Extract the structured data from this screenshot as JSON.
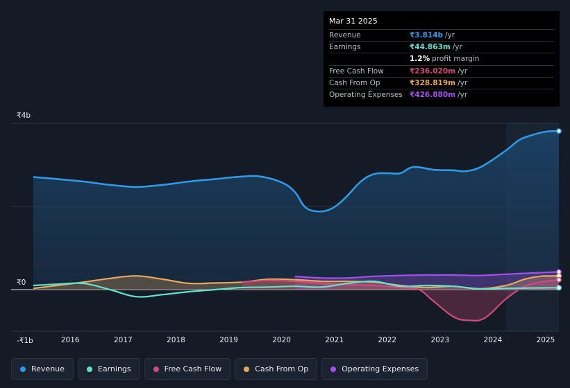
{
  "tooltip": {
    "date": "Mar 31 2025",
    "rows": [
      {
        "label": "Revenue",
        "value": "₹3.814b",
        "unit": "/yr",
        "color": "#2e9ae6"
      },
      {
        "label": "Earnings",
        "value": "₹44.863m",
        "unit": "/yr",
        "color": "#5fe3cf"
      },
      {
        "label": "",
        "value": "1.2%",
        "unit": "profit margin",
        "color": "#ffffff"
      },
      {
        "label": "Free Cash Flow",
        "value": "₹236.020m",
        "unit": "/yr",
        "color": "#d04a7e"
      },
      {
        "label": "Cash From Op",
        "value": "₹328.819m",
        "unit": "/yr",
        "color": "#e8a85a"
      },
      {
        "label": "Operating Expenses",
        "value": "₹426.880m",
        "unit": "/yr",
        "color": "#a64ff0"
      }
    ]
  },
  "legend": [
    {
      "label": "Revenue",
      "color": "#2e9ae6"
    },
    {
      "label": "Earnings",
      "color": "#5fe3cf"
    },
    {
      "label": "Free Cash Flow",
      "color": "#d04a7e"
    },
    {
      "label": "Cash From Op",
      "color": "#e8a85a"
    },
    {
      "label": "Operating Expenses",
      "color": "#a64ff0"
    }
  ],
  "chart_data": {
    "type": "area",
    "title": "",
    "xlabel": "",
    "ylabel": "",
    "unit": "INR (billions)",
    "y_ticks": [
      {
        "value": 4,
        "label": "₹4b"
      },
      {
        "value": 0,
        "label": "₹0"
      },
      {
        "value": -1,
        "label": "-₹1b"
      }
    ],
    "ylim": [
      -1,
      4
    ],
    "xlim": [
      2015.3,
      2025.25
    ],
    "x_ticks": [
      "2016",
      "2017",
      "2018",
      "2019",
      "2020",
      "2021",
      "2022",
      "2023",
      "2024",
      "2025"
    ],
    "forecast_start": 2024.25,
    "series": [
      {
        "name": "Revenue",
        "color": "#2e9ae6",
        "fill": true,
        "x": [
          2015.3,
          2015.75,
          2016.25,
          2016.75,
          2017.25,
          2017.75,
          2018.25,
          2018.75,
          2019.25,
          2019.6,
          2020.0,
          2020.25,
          2020.45,
          2020.7,
          2020.95,
          2021.2,
          2021.5,
          2021.75,
          2022.0,
          2022.25,
          2022.5,
          2022.9,
          2023.25,
          2023.5,
          2023.8,
          2024.25,
          2024.5,
          2024.75,
          2025.0,
          2025.25
        ],
        "y": [
          2.71,
          2.66,
          2.6,
          2.52,
          2.47,
          2.52,
          2.6,
          2.66,
          2.72,
          2.72,
          2.58,
          2.35,
          1.98,
          1.88,
          1.95,
          2.2,
          2.6,
          2.78,
          2.8,
          2.8,
          2.95,
          2.88,
          2.87,
          2.85,
          2.97,
          3.35,
          3.6,
          3.72,
          3.8,
          3.814
        ]
      },
      {
        "name": "Earnings",
        "color": "#5fe3cf",
        "fill": false,
        "x": [
          2015.3,
          2015.75,
          2016.25,
          2016.75,
          2017.25,
          2017.75,
          2018.25,
          2018.75,
          2019.25,
          2019.75,
          2020.25,
          2020.75,
          2021.25,
          2021.75,
          2022.25,
          2022.75,
          2023.25,
          2023.75,
          2024.25,
          2024.75,
          2025.25
        ],
        "y": [
          0.1,
          0.13,
          0.15,
          0.0,
          -0.17,
          -0.12,
          -0.05,
          0.0,
          0.05,
          0.06,
          0.08,
          0.06,
          0.15,
          0.2,
          0.08,
          0.1,
          0.08,
          0.02,
          0.03,
          0.04,
          0.045
        ]
      },
      {
        "name": "Free Cash Flow",
        "color": "#d04a7e",
        "fill": true,
        "x": [
          2019.25,
          2019.75,
          2020.25,
          2020.75,
          2021.25,
          2021.75,
          2022.25,
          2022.6,
          2022.85,
          2023.25,
          2023.55,
          2023.85,
          2024.25,
          2024.6,
          2024.9,
          2025.25
        ],
        "y": [
          0.18,
          0.22,
          0.2,
          0.15,
          0.12,
          0.1,
          0.05,
          0.0,
          -0.25,
          -0.65,
          -0.74,
          -0.68,
          -0.22,
          0.08,
          0.18,
          0.236
        ]
      },
      {
        "name": "Cash From Op",
        "color": "#e8a85a",
        "fill": true,
        "x": [
          2015.3,
          2015.75,
          2016.25,
          2016.75,
          2017.25,
          2017.75,
          2018.25,
          2018.75,
          2019.25,
          2019.75,
          2020.25,
          2020.75,
          2021.25,
          2021.75,
          2022.25,
          2022.75,
          2023.25,
          2023.75,
          2024.25,
          2024.6,
          2024.9,
          2025.25
        ],
        "y": [
          0.03,
          0.1,
          0.18,
          0.27,
          0.33,
          0.25,
          0.15,
          0.16,
          0.18,
          0.25,
          0.24,
          0.2,
          0.2,
          0.18,
          0.1,
          0.05,
          0.08,
          0.02,
          0.1,
          0.25,
          0.32,
          0.329
        ]
      },
      {
        "name": "Operating Expenses",
        "color": "#a64ff0",
        "fill": true,
        "x": [
          2020.25,
          2020.75,
          2021.25,
          2021.75,
          2022.25,
          2022.75,
          2023.25,
          2023.75,
          2024.25,
          2024.75,
          2025.25
        ],
        "y": [
          0.32,
          0.28,
          0.28,
          0.32,
          0.34,
          0.35,
          0.35,
          0.34,
          0.37,
          0.4,
          0.427
        ]
      }
    ]
  }
}
